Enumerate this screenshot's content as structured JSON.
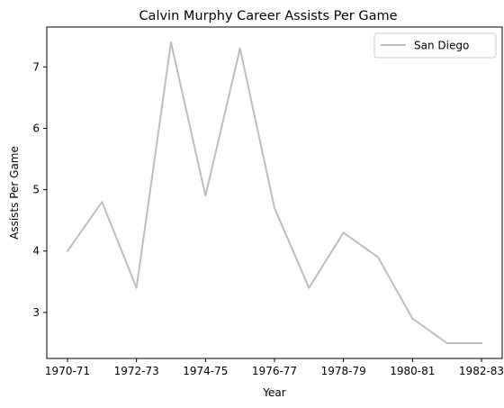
{
  "chart_data": {
    "type": "line",
    "title": "Calvin Murphy Career Assists Per Game",
    "xlabel": "Year",
    "ylabel": "Assists Per Game",
    "x": [
      0,
      1,
      2,
      3,
      4,
      5,
      6,
      7,
      8,
      9,
      10,
      11,
      12
    ],
    "x_tick_labels": [
      "1970-71",
      "1972-73",
      "1974-75",
      "1976-77",
      "1978-79",
      "1980-81",
      "1982-83"
    ],
    "x_tick_positions": [
      0,
      2,
      4,
      6,
      8,
      10,
      12
    ],
    "y_ticks": [
      3,
      4,
      5,
      6,
      7
    ],
    "xlim": [
      -0.6,
      12.6
    ],
    "ylim": [
      2.25,
      7.65
    ],
    "grid": false,
    "legend_position": "top-right",
    "series": [
      {
        "name": "San Diego",
        "color": "#bdbdbd",
        "values": [
          4.0,
          4.8,
          3.4,
          7.4,
          4.9,
          7.3,
          4.7,
          3.4,
          4.3,
          3.9,
          2.9,
          2.5,
          2.5
        ]
      }
    ]
  }
}
